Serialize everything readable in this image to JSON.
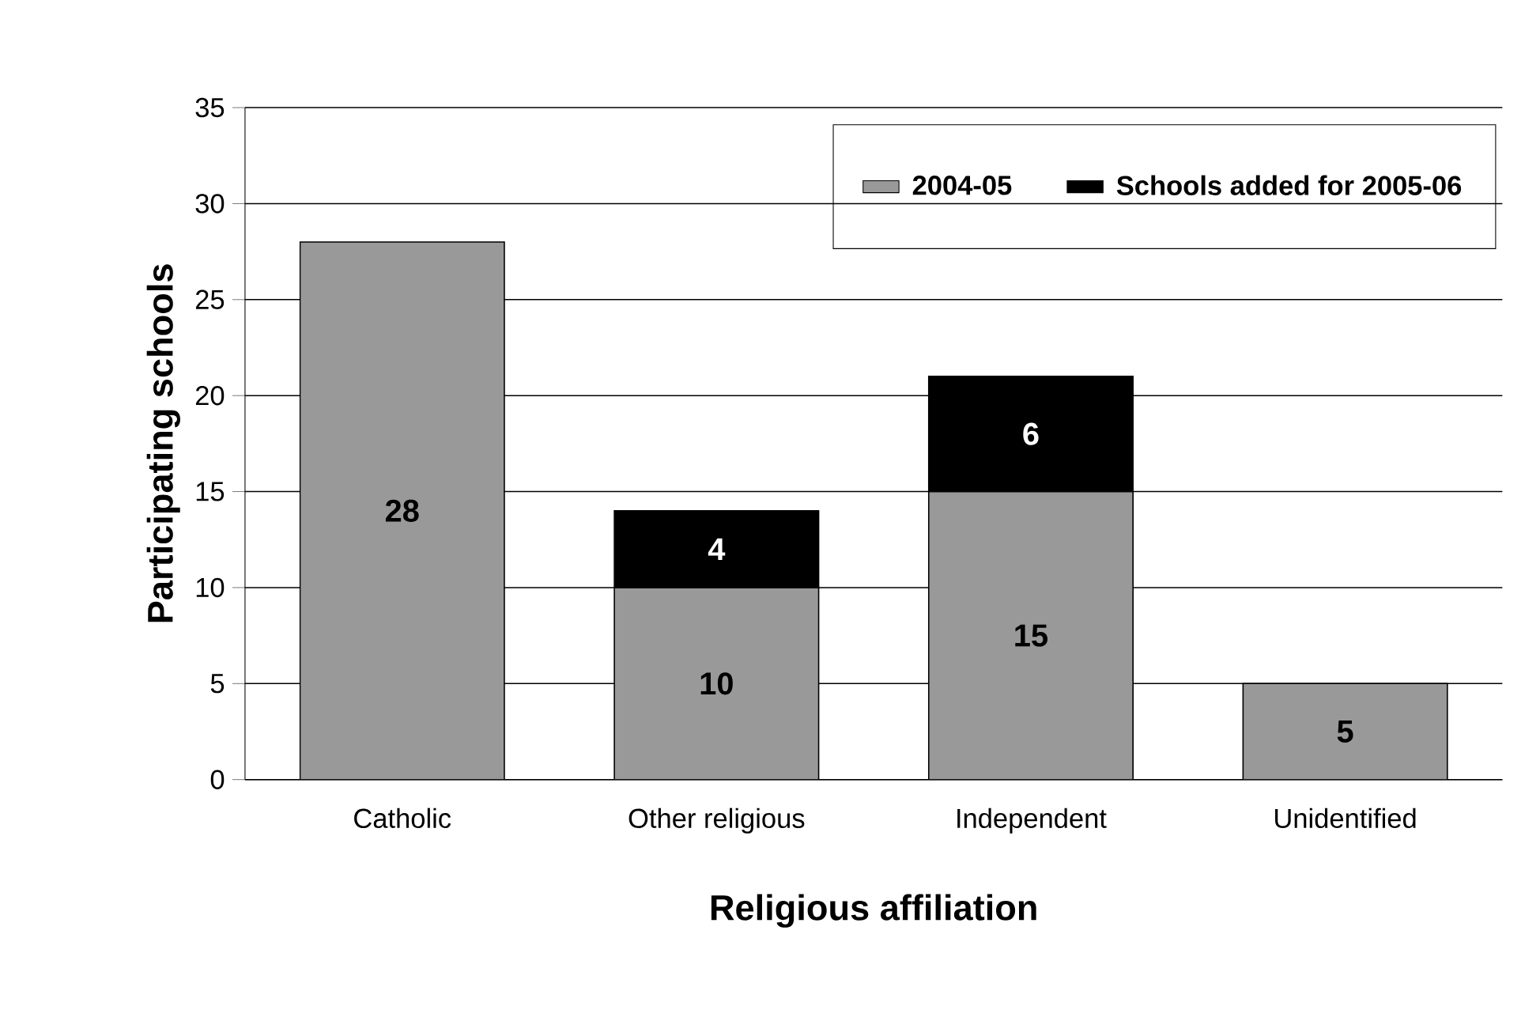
{
  "chart_data": {
    "type": "bar",
    "stacked": true,
    "xlabel": "Religious affiliation",
    "ylabel": "Participating schools",
    "categories": [
      "Catholic",
      "Other religious",
      "Independent",
      "Unidentified"
    ],
    "series": [
      {
        "name": "2004-05",
        "color": "#999999",
        "values": [
          28,
          10,
          15,
          5
        ]
      },
      {
        "name": "Schools added for 2005-06",
        "color": "#000000",
        "values": [
          null,
          4,
          6,
          null
        ]
      }
    ],
    "ylim": [
      0,
      35
    ],
    "yticks": [
      0,
      5,
      10,
      15,
      20,
      25,
      30,
      35
    ],
    "grid": "y",
    "legend": "top right",
    "data_labels": true
  }
}
